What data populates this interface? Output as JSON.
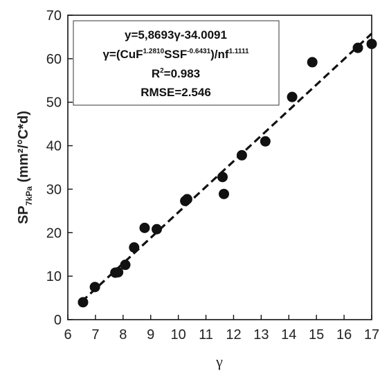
{
  "chart_data": {
    "type": "scatter",
    "xlabel": "γ",
    "ylabel": {
      "main": "SP",
      "sub": "7kPa",
      "unit": " (mm²/°C*d)"
    },
    "xlim": [
      6,
      17
    ],
    "ylim": [
      0,
      70
    ],
    "xticks": [
      6,
      7,
      8,
      9,
      10,
      11,
      12,
      13,
      14,
      15,
      16,
      17
    ],
    "yticks": [
      0,
      10,
      20,
      30,
      40,
      50,
      60,
      70
    ],
    "grid": false,
    "points": {
      "x": [
        6.55,
        6.98,
        7.72,
        7.82,
        8.08,
        8.4,
        8.78,
        9.22,
        10.25,
        10.32,
        11.6,
        11.65,
        12.3,
        13.15,
        14.12,
        14.85,
        16.5,
        17.0
      ],
      "y": [
        4.0,
        7.5,
        10.8,
        10.9,
        12.6,
        16.6,
        21.1,
        20.8,
        27.3,
        27.7,
        32.8,
        28.9,
        37.8,
        41.0,
        51.2,
        59.2,
        62.5,
        63.4
      ]
    },
    "fit_line": {
      "slope": 5.8693,
      "intercept": -34.0091,
      "x_range": [
        6.5,
        17.0
      ],
      "style": "dashed"
    },
    "annotation": {
      "equation": "y=5,8693γ-34.0091",
      "gamma_def": {
        "p1": "γ=(CuF",
        "sup1": "1.2810",
        "p2": "SSF",
        "sup2": "-0.6431",
        "p3": ")/nf",
        "sup3": "1.1111"
      },
      "r2": {
        "base": "R",
        "sup": "2",
        "rest": "=0.983"
      },
      "rmse": "RMSE=2.546"
    }
  }
}
